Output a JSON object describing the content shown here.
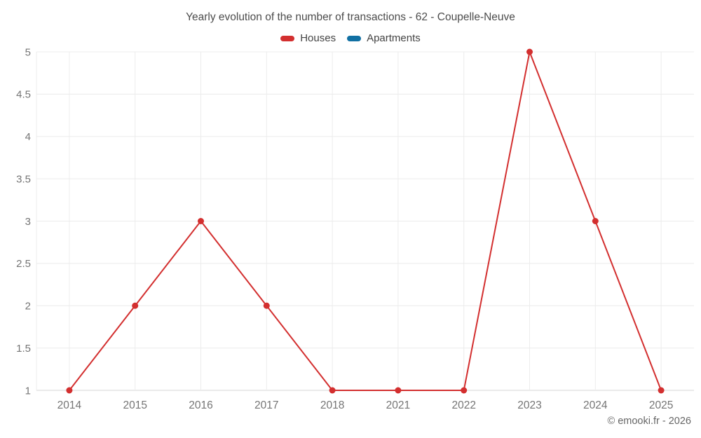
{
  "chart_data": {
    "type": "line",
    "title": "Yearly evolution of the number of transactions - 62 - Coupelle-Neuve",
    "categories": [
      "2014",
      "2015",
      "2016",
      "2017",
      "2018",
      "2021",
      "2022",
      "2023",
      "2024",
      "2025"
    ],
    "series": [
      {
        "name": "Houses",
        "color": "#d32f2f",
        "values": [
          1,
          2,
          3,
          2,
          1,
          1,
          1,
          5,
          3,
          1
        ]
      },
      {
        "name": "Apartments",
        "color": "#1170a3",
        "values": []
      }
    ],
    "xlabel": "",
    "ylabel": "",
    "ylim": [
      1,
      5
    ],
    "ytick_step": 0.5,
    "yticks": [
      "1",
      "1.5",
      "2",
      "2.5",
      "3",
      "3.5",
      "4",
      "4.5",
      "5"
    ],
    "grid": true,
    "legend_position": "top",
    "marker": "circle",
    "colors": {
      "axis_text": "#757575",
      "grid_line": "#ececec",
      "axis_line": "#d6d6d6",
      "title_text": "#4c4c4c"
    }
  },
  "attribution": "© emooki.fr - 2026"
}
